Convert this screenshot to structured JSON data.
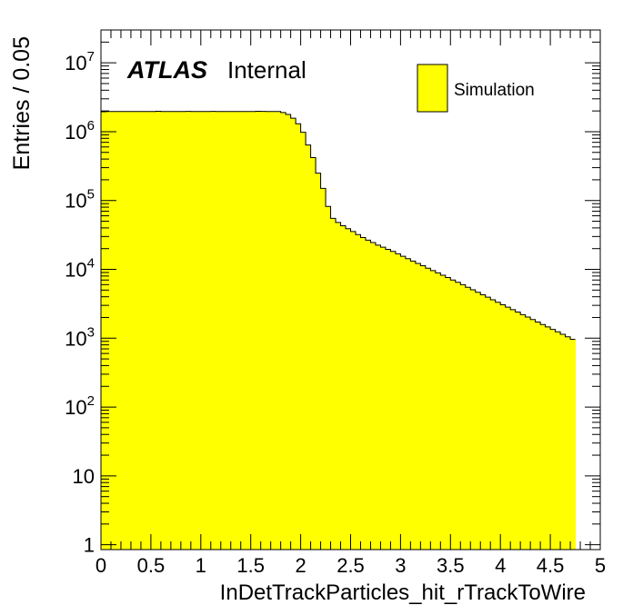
{
  "chart_data": {
    "type": "histogram",
    "x_label": "InDetTrackParticles_hit_rTrackToWire",
    "y_label": "Entries / 0.05",
    "x_range": [
      0,
      5
    ],
    "y_range": [
      0.85,
      30000000
    ],
    "y_scale": "log",
    "bin_width": 0.05,
    "x_ticks": [
      "0",
      "0.5",
      "1",
      "1.5",
      "2",
      "2.5",
      "3",
      "3.5",
      "4",
      "4.5",
      "5"
    ],
    "x_tick_values": [
      0,
      0.5,
      1,
      1.5,
      2,
      2.5,
      3,
      3.5,
      4,
      4.5,
      5
    ],
    "y_ticks": [
      {
        "value": 1,
        "base": "1",
        "exp": ""
      },
      {
        "value": 10,
        "base": "10",
        "exp": ""
      },
      {
        "value": 100,
        "base": "10",
        "exp": "2"
      },
      {
        "value": 1000,
        "base": "10",
        "exp": "3"
      },
      {
        "value": 10000,
        "base": "10",
        "exp": "4"
      },
      {
        "value": 100000,
        "base": "10",
        "exp": "5"
      },
      {
        "value": 1000000,
        "base": "10",
        "exp": "6"
      },
      {
        "value": 10000000,
        "base": "10",
        "exp": "7"
      }
    ],
    "series": [
      {
        "name": "Simulation",
        "color": "#ffff00",
        "values": [
          1950000,
          1960000,
          1960000,
          1960000,
          1960000,
          1960000,
          1960000,
          1960000,
          1960000,
          1960000,
          1960000,
          1980000,
          1960000,
          1960000,
          1960000,
          1960000,
          1960000,
          1970000,
          1960000,
          1960000,
          1960000,
          1960000,
          1970000,
          1960000,
          1960000,
          1960000,
          1960000,
          1960000,
          1960000,
          1960000,
          1960000,
          1980000,
          1970000,
          1960000,
          1960000,
          1960000,
          1900000,
          1780000,
          1570000,
          1300000,
          980000,
          640000,
          420000,
          250000,
          150000,
          82000,
          55000,
          48000,
          43000,
          39000,
          35500,
          32000,
          29000,
          26500,
          24500,
          22500,
          21000,
          19500,
          18200,
          16800,
          15500,
          14300,
          13200,
          12200,
          11300,
          10400,
          9600,
          8900,
          8200,
          7600,
          7000,
          6500,
          6000,
          5500,
          5050,
          4650,
          4280,
          3940,
          3620,
          3330,
          3060,
          2820,
          2600,
          2400,
          2200,
          2030,
          1870,
          1720,
          1580,
          1460,
          1340,
          1240,
          1140,
          1050,
          965
        ]
      }
    ],
    "legend": {
      "entries": [
        "Simulation"
      ],
      "position": "top-right"
    },
    "annotation": {
      "bold_text": "ATLAS",
      "text": "Internal"
    }
  }
}
